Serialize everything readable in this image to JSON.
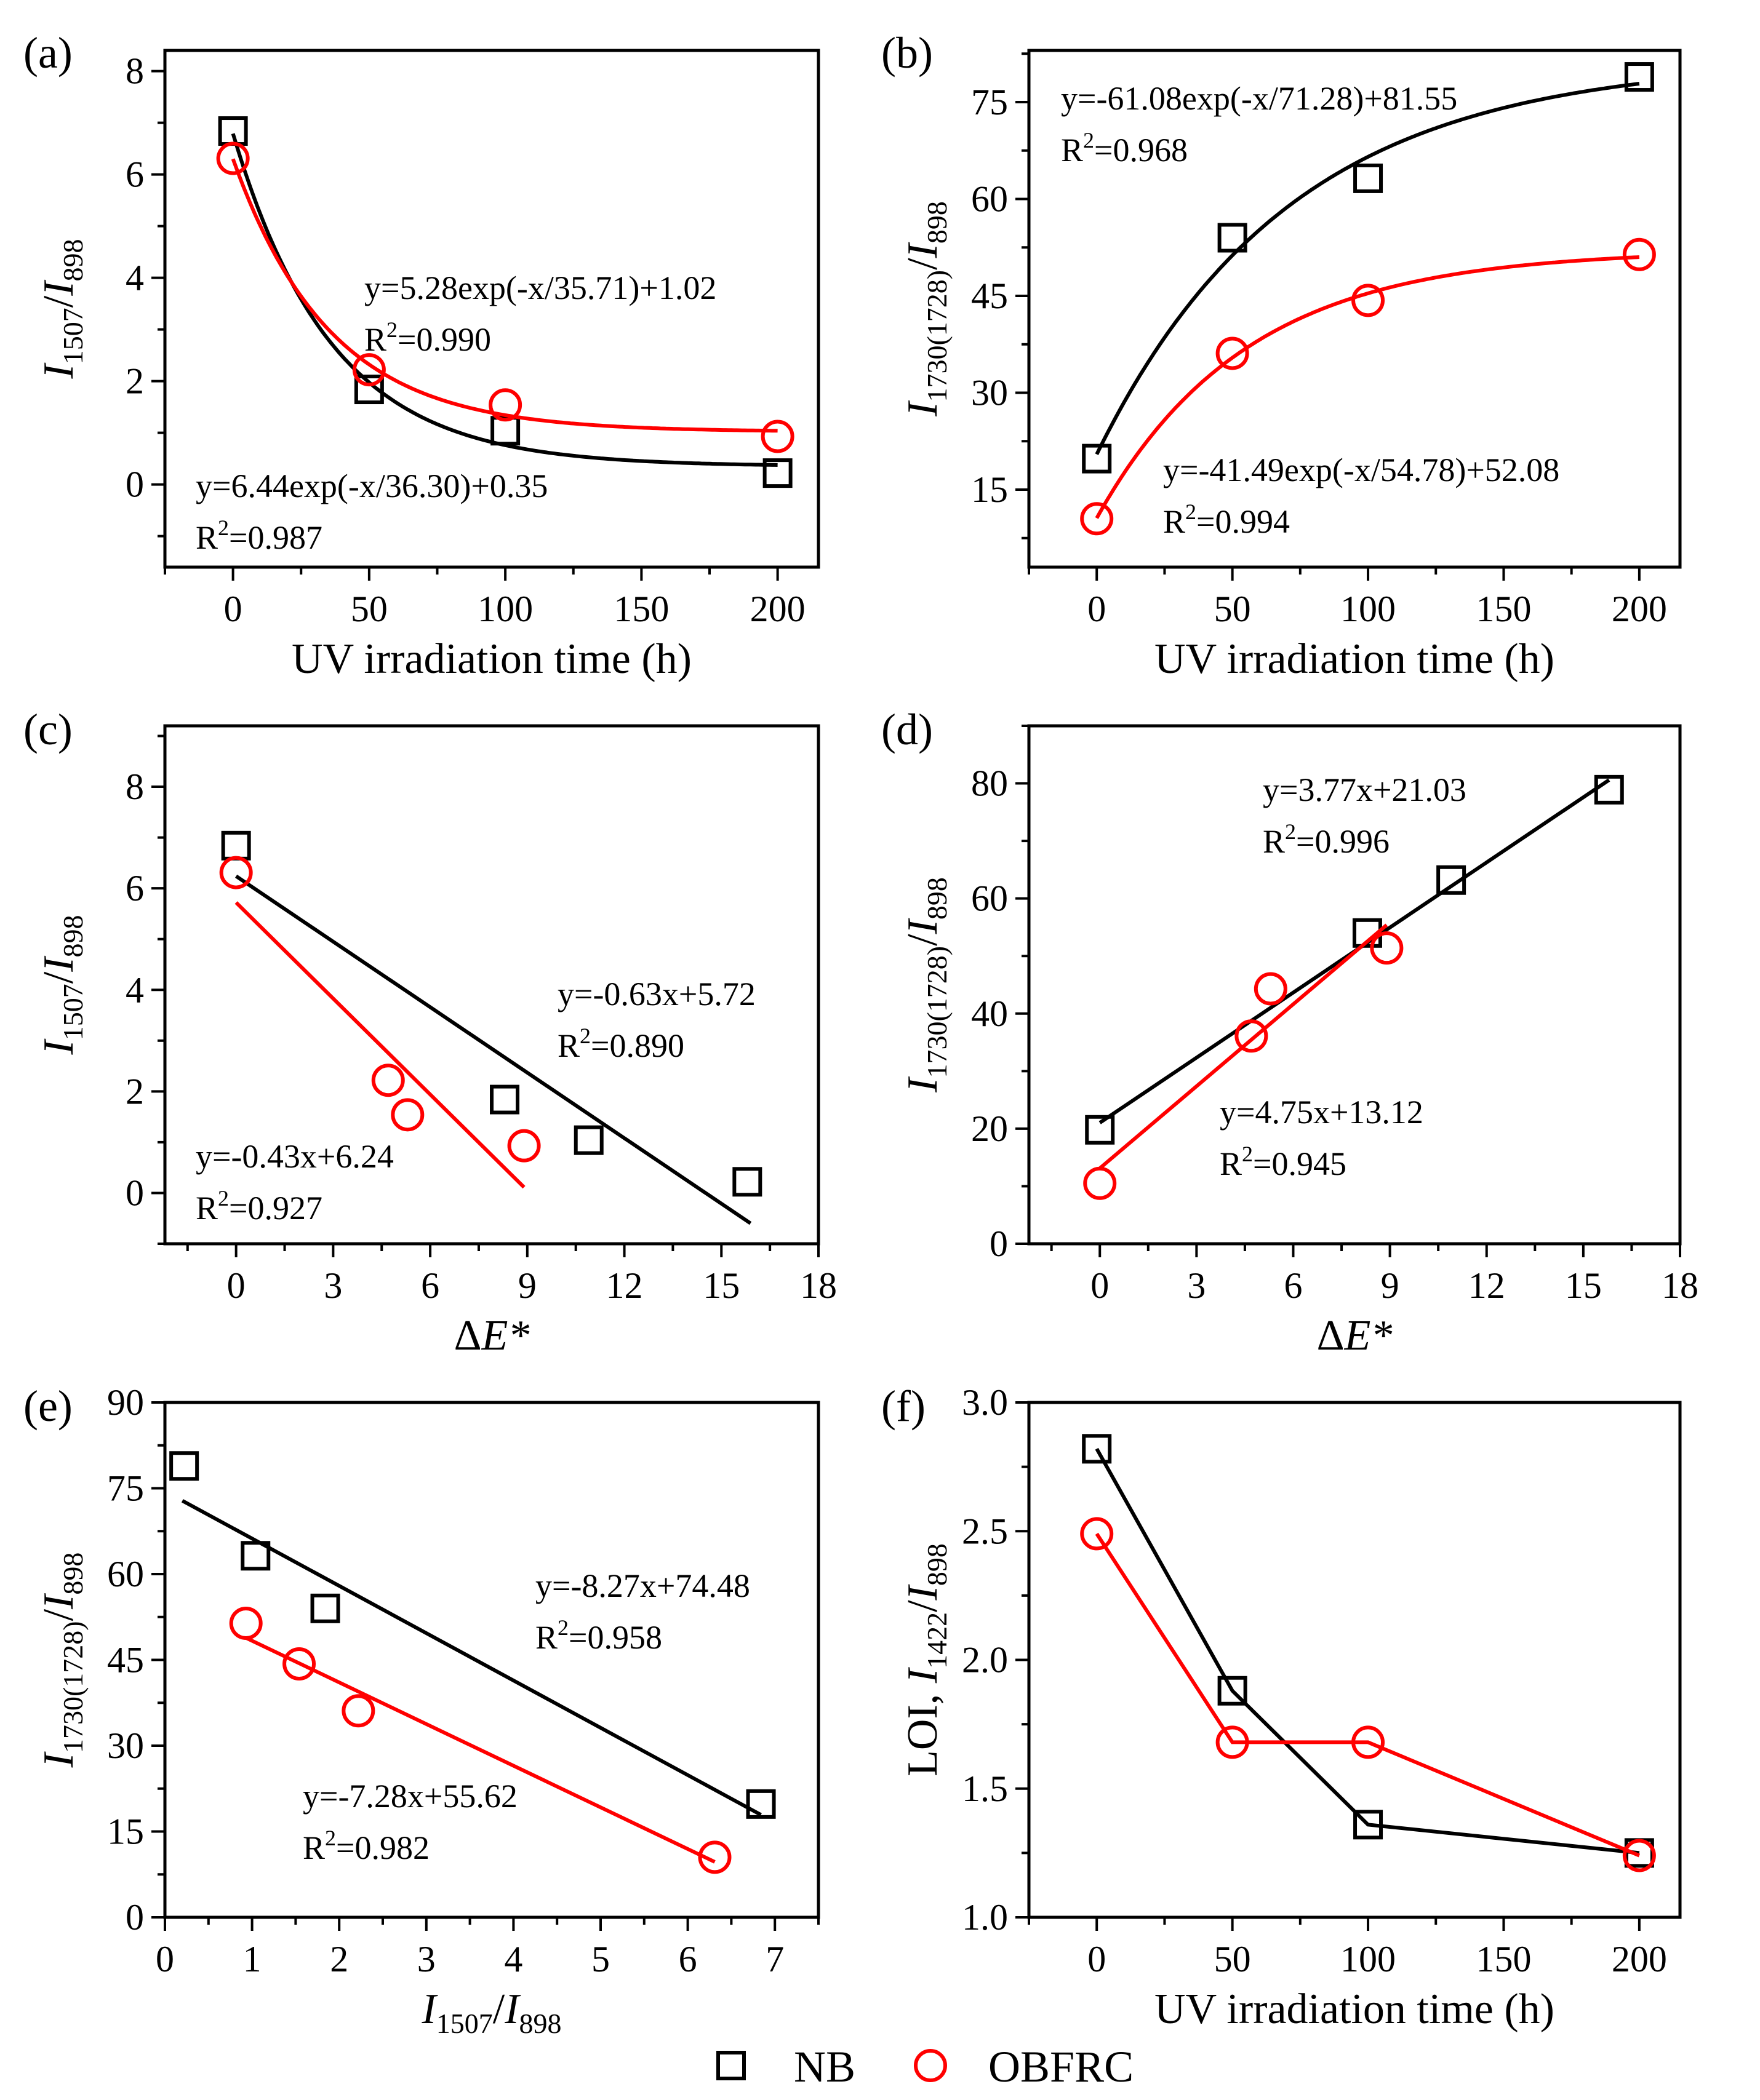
{
  "colors": {
    "nb": "#000000",
    "obfrc": "#ff0000"
  },
  "legend": {
    "location": "bottom-center",
    "items": [
      {
        "label": "NB",
        "marker": "square",
        "color": "#000000"
      },
      {
        "label": "OBFRC",
        "marker": "circle",
        "color": "#ff0000"
      }
    ]
  },
  "chart_data": [
    {
      "id": "a",
      "panel_label": "(a)",
      "type": "scatter",
      "xlabel": "UV irradiation time (h)",
      "ylabel": {
        "main": "I",
        "sub": "1507",
        "sep": "/",
        "main2": "I",
        "sub2": "898"
      },
      "xlim": [
        -25,
        215
      ],
      "ylim": [
        -1.6,
        8.4
      ],
      "xticks": [
        0,
        50,
        100,
        150,
        200
      ],
      "yticks": [
        0,
        2,
        4,
        6,
        8
      ],
      "grid": false,
      "series": [
        {
          "name": "NB",
          "marker": "square",
          "x": [
            0,
            50,
            100,
            200
          ],
          "y": [
            6.84,
            1.84,
            1.04,
            0.22
          ],
          "fit": {
            "kind": "exp",
            "a": 6.44,
            "t": 36.3,
            "c": 0.35
          },
          "equation": "y=6.44exp(-x/36.30)+0.35",
          "r2_value": "=0.987"
        },
        {
          "name": "OBFRC",
          "marker": "circle",
          "x": [
            0,
            50,
            100,
            200
          ],
          "y": [
            6.31,
            2.22,
            1.54,
            0.93
          ],
          "fit": {
            "kind": "exp",
            "a": 5.28,
            "t": 35.71,
            "c": 1.02
          },
          "equation": "y=5.28exp(-x/35.71)+1.02",
          "r2_value": "=0.990"
        }
      ]
    },
    {
      "id": "b",
      "panel_label": "(b)",
      "type": "scatter",
      "xlabel": "UV irradiation time (h)",
      "ylabel": {
        "main": "I",
        "sub": "1730(1728)",
        "sep": "/",
        "main2": "I",
        "sub2": "898"
      },
      "xlim": [
        -25,
        215
      ],
      "ylim": [
        3,
        83
      ],
      "xticks": [
        0,
        50,
        100,
        150,
        200
      ],
      "yticks": [
        15,
        30,
        45,
        60,
        75
      ],
      "grid": false,
      "series": [
        {
          "name": "NB",
          "marker": "square",
          "x": [
            0,
            50,
            100,
            200
          ],
          "y": [
            19.8,
            54.0,
            63.2,
            78.9
          ],
          "fit": {
            "kind": "exp",
            "a": -61.08,
            "t": 71.28,
            "c": 81.55
          },
          "equation": "y=-61.08exp(-x/71.28)+81.55",
          "r2_value": "=0.968"
        },
        {
          "name": "OBFRC",
          "marker": "circle",
          "x": [
            0,
            50,
            100,
            200
          ],
          "y": [
            10.5,
            36.1,
            44.3,
            51.4
          ],
          "fit": {
            "kind": "exp",
            "a": -41.49,
            "t": 54.78,
            "c": 52.08
          },
          "equation": "y=-41.49exp(-x/54.78)+52.08",
          "r2_value": "=0.994"
        }
      ]
    },
    {
      "id": "c",
      "panel_label": "(c)",
      "type": "scatter",
      "xlabel": "ΔE*",
      "ylabel": {
        "main": "I",
        "sub": "1507",
        "sep": "/",
        "main2": "I",
        "sub2": "898"
      },
      "xlim": [
        -2.2,
        18
      ],
      "ylim": [
        -1.0,
        9.2
      ],
      "xticks": [
        0,
        3,
        6,
        9,
        12,
        15,
        18
      ],
      "yticks": [
        0,
        2,
        4,
        6,
        8
      ],
      "grid": false,
      "series": [
        {
          "name": "NB",
          "marker": "square",
          "x": [
            0,
            8.3,
            10.9,
            15.8
          ],
          "y": [
            6.84,
            1.84,
            1.04,
            0.22
          ],
          "fit": {
            "kind": "linear",
            "m": -0.43,
            "b": 6.24,
            "x0": 0,
            "x1": 15.9
          },
          "equation": "y=-0.43x+6.24",
          "r2_value": "=0.927"
        },
        {
          "name": "OBFRC",
          "marker": "circle",
          "x": [
            0,
            4.7,
            5.3,
            8.9
          ],
          "y": [
            6.31,
            2.22,
            1.54,
            0.93
          ],
          "fit": {
            "kind": "linear",
            "m": -0.63,
            "b": 5.72,
            "x0": 0,
            "x1": 8.9
          },
          "equation": "y=-0.63x+5.72",
          "r2_value": "=0.890"
        }
      ]
    },
    {
      "id": "d",
      "panel_label": "(d)",
      "type": "scatter",
      "xlabel": "ΔE*",
      "ylabel": {
        "main": "I",
        "sub": "1730(1728)",
        "sep": "/",
        "main2": "I",
        "sub2": "898"
      },
      "xlim": [
        -2.2,
        18
      ],
      "ylim": [
        0,
        90
      ],
      "xticks": [
        0,
        3,
        6,
        9,
        12,
        15,
        18
      ],
      "yticks": [
        0,
        20,
        40,
        60,
        80
      ],
      "grid": false,
      "series": [
        {
          "name": "NB",
          "marker": "square",
          "x": [
            0,
            8.3,
            10.9,
            15.8
          ],
          "y": [
            19.8,
            54.0,
            63.2,
            78.9
          ],
          "fit": {
            "kind": "linear",
            "m": 3.77,
            "b": 21.03,
            "x0": 0,
            "x1": 15.8
          },
          "equation": "y=3.77x+21.03",
          "r2_value": "=0.996"
        },
        {
          "name": "OBFRC",
          "marker": "circle",
          "x": [
            0,
            4.7,
            5.3,
            8.9
          ],
          "y": [
            10.5,
            36.1,
            44.3,
            51.4
          ],
          "fit": {
            "kind": "linear",
            "m": 4.75,
            "b": 13.12,
            "x0": 0,
            "x1": 8.9
          },
          "equation": "y=4.75x+13.12",
          "r2_value": "=0.945"
        }
      ]
    },
    {
      "id": "e",
      "panel_label": "(e)",
      "type": "scatter",
      "xlabel": {
        "main": "I",
        "sub": "1507",
        "sep": "/",
        "main2": "I",
        "sub2": "898"
      },
      "ylabel": {
        "main": "I",
        "sub": "1730(1728)",
        "sep": "/",
        "main2": "I",
        "sub2": "898"
      },
      "xlim": [
        0,
        7.5
      ],
      "ylim": [
        0,
        90
      ],
      "xticks": [
        0,
        1,
        2,
        3,
        4,
        5,
        6,
        7
      ],
      "yticks": [
        0,
        15,
        30,
        45,
        60,
        75,
        90
      ],
      "grid": false,
      "series": [
        {
          "name": "NB",
          "marker": "square",
          "x": [
            0.22,
            1.04,
            1.84,
            6.84
          ],
          "y": [
            78.9,
            63.2,
            54.0,
            19.8
          ],
          "fit": {
            "kind": "linear",
            "m": -8.27,
            "b": 74.48,
            "x0": 0.2,
            "x1": 6.84
          },
          "equation": "y=-8.27x+74.48",
          "r2_value": "=0.958"
        },
        {
          "name": "OBFRC",
          "marker": "circle",
          "x": [
            0.93,
            1.54,
            2.22,
            6.31
          ],
          "y": [
            51.4,
            44.3,
            36.1,
            10.5
          ],
          "fit": {
            "kind": "linear",
            "m": -7.28,
            "b": 55.62,
            "x0": 0.93,
            "x1": 6.31
          },
          "equation": "y=-7.28x+55.62",
          "r2_value": "=0.982"
        }
      ]
    },
    {
      "id": "f",
      "panel_label": "(f)",
      "type": "line",
      "xlabel": "UV irradiation time (h)",
      "ylabel": {
        "main": "LOI, ",
        "main_italic": false,
        "main2": "I",
        "sub2": "1422",
        "sep": "/",
        "main3": "I",
        "sub3": "898"
      },
      "xlim": [
        -25,
        215
      ],
      "ylim": [
        1.0,
        3.0
      ],
      "xticks": [
        0,
        50,
        100,
        150,
        200
      ],
      "yticks": [
        1.0,
        1.5,
        2.0,
        2.5,
        3.0
      ],
      "ytick_labels": [
        "1.0",
        "1.5",
        "2.0",
        "2.5",
        "3.0"
      ],
      "grid": false,
      "series": [
        {
          "name": "NB",
          "marker": "square",
          "x": [
            0,
            50,
            100,
            200
          ],
          "y": [
            2.82,
            1.88,
            1.36,
            1.25
          ]
        },
        {
          "name": "OBFRC",
          "marker": "circle",
          "x": [
            0,
            50,
            100,
            200
          ],
          "y": [
            2.49,
            1.68,
            1.68,
            1.24
          ]
        }
      ]
    }
  ]
}
